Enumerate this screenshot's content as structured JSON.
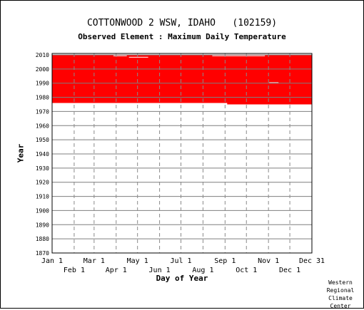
{
  "chart_data": {
    "type": "area",
    "title": "COTTONWOOD 2 WSW, IDAHO   (102159)",
    "subtitle": "Observed Element : Maximum Daily Temperature",
    "xlabel": "Day of Year",
    "ylabel": "Year",
    "xlim": [
      1,
      366
    ],
    "ylim": [
      1870,
      2011
    ],
    "grid": true,
    "y_ticks": [
      1870,
      1880,
      1890,
      1900,
      1910,
      1920,
      1930,
      1940,
      1950,
      1960,
      1970,
      1980,
      1990,
      2000,
      2010
    ],
    "x_ticks_upper": [
      {
        "label": "Jan 1",
        "day": 1
      },
      {
        "label": "Mar 1",
        "day": 60
      },
      {
        "label": "May 1",
        "day": 121
      },
      {
        "label": "Jul 1",
        "day": 182
      },
      {
        "label": "Sep 1",
        "day": 244
      },
      {
        "label": "Nov 1",
        "day": 305
      },
      {
        "label": "Dec 31",
        "day": 366
      }
    ],
    "x_ticks_lower": [
      {
        "label": "Feb 1",
        "day": 32
      },
      {
        "label": "Apr 1",
        "day": 91
      },
      {
        "label": "Jun 1",
        "day": 152
      },
      {
        "label": "Aug 1",
        "day": 213
      },
      {
        "label": "Oct 1",
        "day": 274
      },
      {
        "label": "Dec 1",
        "day": 335
      }
    ],
    "series": [
      {
        "color": "#ff0000",
        "segments": [
          {
            "day_start": 1,
            "day_end": 366,
            "year_start": 1976,
            "year_end": 2010
          }
        ],
        "extended_periods": [
          {
            "day_start": 247,
            "day_end": 366,
            "year_start": 1975,
            "year_end": 1976
          }
        ],
        "missing_periods": [
          {
            "day_start": 87,
            "day_end": 106,
            "year_start": 2009.2,
            "year_end": 2009.6
          },
          {
            "day_start": 109,
            "day_end": 136,
            "year_start": 2008.2,
            "year_end": 2008.6
          },
          {
            "day_start": 226,
            "day_end": 300,
            "year_start": 2009.2,
            "year_end": 2009.6
          },
          {
            "day_start": 306,
            "day_end": 319,
            "year_start": 1990.2,
            "year_end": 1990.6
          }
        ]
      }
    ]
  },
  "credit": [
    "Western",
    "Regional",
    "Climate",
    "Center"
  ]
}
